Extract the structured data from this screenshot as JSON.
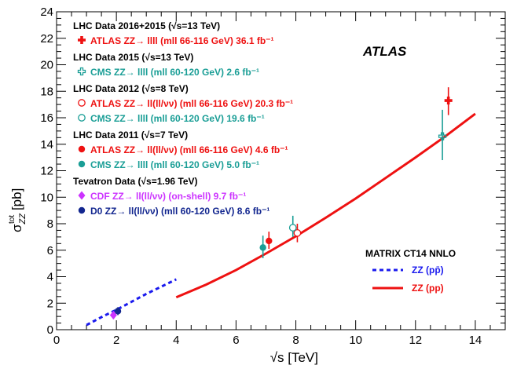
{
  "colors": {
    "red": "#ee1111",
    "teal": "#1a9e96",
    "magenta": "#cc33ff",
    "navy": "#12268f",
    "blue": "#1a1aee",
    "black": "#000000"
  },
  "chart_data": {
    "type": "scatter",
    "title": "",
    "xlabel": "√s [TeV]",
    "ylabel": "σ tot ZZ [pb]",
    "ylabel_parts": {
      "main": "σ",
      "sup": "tot",
      "sub": "ZZ",
      "unit": "[pb]"
    },
    "xlim": [
      0,
      15
    ],
    "ylim": [
      0,
      24
    ],
    "xticks": [
      "0",
      "2",
      "4",
      "6",
      "8",
      "10",
      "12",
      "14"
    ],
    "yticks": [
      "0",
      "2",
      "4",
      "6",
      "8",
      "10",
      "12",
      "14",
      "16",
      "18",
      "20",
      "22",
      "24"
    ],
    "annotation": "ATLAS",
    "legend_groups": [
      {
        "header": "LHC Data 2016+2015 (√s=13 TeV)",
        "entries": [
          {
            "label": "ATLAS ZZ→ llll (mll 66-116 GeV) 36.1 fb⁻¹",
            "marker": "cross",
            "color": "red"
          }
        ]
      },
      {
        "header": "LHC Data 2015 (√s=13 TeV)",
        "entries": [
          {
            "label": "CMS ZZ→ llll (mll 60-120 GeV) 2.6 fb⁻¹",
            "marker": "open-cross",
            "color": "teal"
          }
        ]
      },
      {
        "header": "LHC Data 2012 (√s=8 TeV)",
        "entries": [
          {
            "label": "ATLAS ZZ→ ll(ll/νν) (mll 66-116 GeV) 20.3 fb⁻¹",
            "marker": "open-circle",
            "color": "red"
          },
          {
            "label": "CMS ZZ→ llll (mll 60-120 GeV) 19.6 fb⁻¹",
            "marker": "open-circle",
            "color": "teal"
          }
        ]
      },
      {
        "header": "LHC Data 2011 (√s=7 TeV)",
        "entries": [
          {
            "label": "ATLAS ZZ→ ll(ll/νν) (mll 66-116 GeV) 4.6 fb⁻¹",
            "marker": "circle",
            "color": "red"
          },
          {
            "label": "CMS ZZ→ llll (mll 60-120 GeV) 5.0 fb⁻¹",
            "marker": "circle",
            "color": "teal"
          }
        ]
      },
      {
        "header": "Tevatron Data (√s=1.96 TeV)",
        "entries": [
          {
            "label": "CDF ZZ→ ll(ll/νν) (on-shell) 9.7 fb⁻¹",
            "marker": "diamond",
            "color": "magenta"
          },
          {
            "label": "D0 ZZ→ ll(ll/νν) (mll 60-120 GeV) 8.6 fb⁻¹",
            "marker": "circle",
            "color": "navy"
          }
        ]
      }
    ],
    "theory_legend": {
      "header": "MATRIX CT14 NNLO",
      "entries": [
        {
          "label": "ZZ (pp̄)",
          "style": "dashed",
          "color": "blue"
        },
        {
          "label": "ZZ (pp)",
          "style": "solid",
          "color": "red"
        }
      ]
    },
    "points": [
      {
        "name": "ATLAS 13 TeV",
        "x": 13.1,
        "y": 17.3,
        "ylo": 16.2,
        "yhi": 18.3,
        "marker": "cross",
        "color": "red"
      },
      {
        "name": "CMS 13 TeV",
        "x": 12.9,
        "y": 14.6,
        "ylo": 12.8,
        "yhi": 16.6,
        "marker": "open-cross",
        "color": "teal"
      },
      {
        "name": "ATLAS 8 TeV",
        "x": 8.05,
        "y": 7.3,
        "ylo": 6.6,
        "yhi": 8.0,
        "marker": "open-circle",
        "color": "red"
      },
      {
        "name": "CMS 8 TeV",
        "x": 7.9,
        "y": 7.7,
        "ylo": 7.0,
        "yhi": 8.6,
        "marker": "open-circle",
        "color": "teal"
      },
      {
        "name": "ATLAS 7 TeV",
        "x": 7.1,
        "y": 6.7,
        "ylo": 6.1,
        "yhi": 7.4,
        "marker": "circle",
        "color": "red"
      },
      {
        "name": "CMS 7 TeV",
        "x": 6.9,
        "y": 6.2,
        "ylo": 5.4,
        "yhi": 7.1,
        "marker": "circle",
        "color": "teal"
      },
      {
        "name": "CDF 1.96 TeV",
        "x": 1.9,
        "y": 1.1,
        "ylo": 0.8,
        "yhi": 1.4,
        "marker": "diamond",
        "color": "magenta"
      },
      {
        "name": "D0 1.96 TeV",
        "x": 2.05,
        "y": 1.4,
        "ylo": 1.1,
        "yhi": 1.7,
        "marker": "circle",
        "color": "navy"
      }
    ],
    "curves": [
      {
        "name": "ZZ (pp̄)",
        "style": "dashed",
        "color": "blue",
        "x": [
          1.0,
          1.5,
          2.0,
          2.5,
          3.0,
          3.5,
          4.0
        ],
        "y": [
          0.35,
          0.95,
          1.5,
          2.1,
          2.7,
          3.25,
          3.8
        ]
      },
      {
        "name": "ZZ (pp)",
        "style": "solid",
        "color": "red",
        "x": [
          4.0,
          5.0,
          6.0,
          7.0,
          8.0,
          9.0,
          10.0,
          11.0,
          12.0,
          13.0,
          14.0
        ],
        "y": [
          2.45,
          3.4,
          4.5,
          5.75,
          7.05,
          8.45,
          9.9,
          11.45,
          13.0,
          14.6,
          16.3
        ]
      }
    ]
  }
}
